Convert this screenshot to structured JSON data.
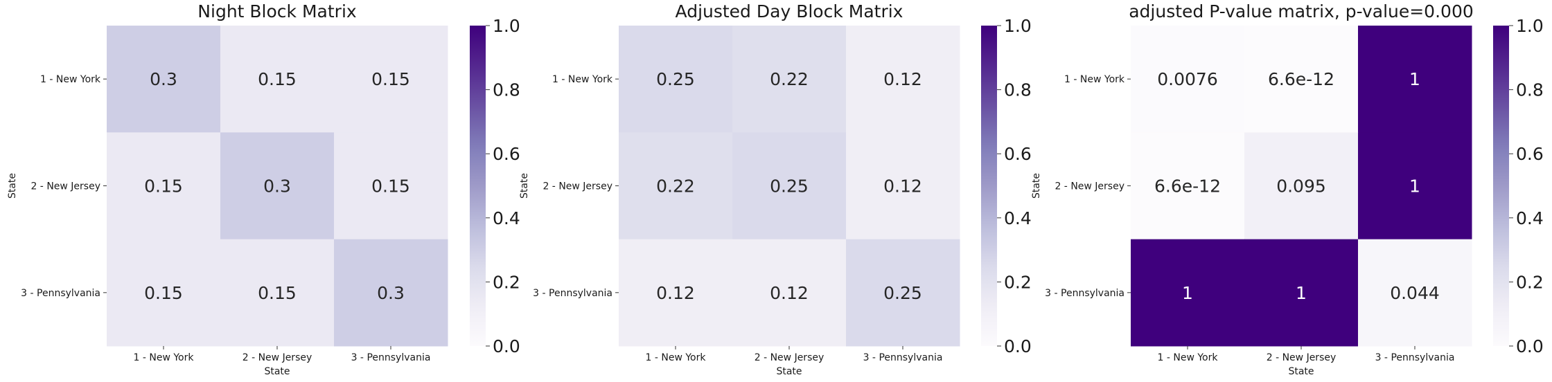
{
  "chart_data": [
    {
      "type": "heatmap",
      "title": "Night Block Matrix",
      "xlabel": "State",
      "ylabel": "State",
      "x_categories": [
        "1 - New York",
        "2 - New Jersey",
        "3 - Pennsylvania"
      ],
      "y_categories": [
        "1 - New York",
        "2 - New Jersey",
        "3 - Pennsylvania"
      ],
      "values": [
        [
          0.3,
          0.15,
          0.15
        ],
        [
          0.15,
          0.3,
          0.15
        ],
        [
          0.15,
          0.15,
          0.3
        ]
      ],
      "annotations": [
        [
          "0.3",
          "0.15",
          "0.15"
        ],
        [
          "0.15",
          "0.3",
          "0.15"
        ],
        [
          "0.15",
          "0.15",
          "0.3"
        ]
      ],
      "colorscale": "Purples",
      "vmin": 0,
      "vmax": 1,
      "colorbar_ticks": [
        "0.0",
        "0.2",
        "0.4",
        "0.6",
        "0.8",
        "1.0"
      ]
    },
    {
      "type": "heatmap",
      "title": "Adjusted Day Block Matrix",
      "xlabel": "State",
      "ylabel": "State",
      "x_categories": [
        "1 - New York",
        "2 - New Jersey",
        "3 - Pennsylvania"
      ],
      "y_categories": [
        "1 - New York",
        "2 - New Jersey",
        "3 - Pennsylvania"
      ],
      "values": [
        [
          0.25,
          0.22,
          0.12
        ],
        [
          0.22,
          0.25,
          0.12
        ],
        [
          0.12,
          0.12,
          0.25
        ]
      ],
      "annotations": [
        [
          "0.25",
          "0.22",
          "0.12"
        ],
        [
          "0.22",
          "0.25",
          "0.12"
        ],
        [
          "0.12",
          "0.12",
          "0.25"
        ]
      ],
      "colorscale": "Purples",
      "vmin": 0,
      "vmax": 1,
      "colorbar_ticks": [
        "0.0",
        "0.2",
        "0.4",
        "0.6",
        "0.8",
        "1.0"
      ]
    },
    {
      "type": "heatmap",
      "title": "adjusted P-value matrix, p-value=0.000",
      "xlabel": "State",
      "ylabel": "State",
      "x_categories": [
        "1 - New York",
        "2 - New Jersey",
        "3 - Pennsylvania"
      ],
      "y_categories": [
        "1 - New York",
        "2 - New Jersey",
        "3 - Pennsylvania"
      ],
      "values": [
        [
          0.0076,
          6.6e-12,
          1
        ],
        [
          6.6e-12,
          0.095,
          1
        ],
        [
          1,
          1,
          0.044
        ]
      ],
      "annotations": [
        [
          "0.0076",
          "6.6e-12",
          "1"
        ],
        [
          "6.6e-12",
          "0.095",
          "1"
        ],
        [
          "1",
          "1",
          "0.044"
        ]
      ],
      "colorscale": "Purples",
      "vmin": 0,
      "vmax": 1,
      "colorbar_ticks": [
        "0.0",
        "0.2",
        "0.4",
        "0.6",
        "0.8",
        "1.0"
      ]
    }
  ],
  "colors": {
    "scale_low": "#fcfbfd",
    "scale_high": "#3f007d",
    "text_dark": "#262626",
    "text_light": "#ffffff"
  }
}
